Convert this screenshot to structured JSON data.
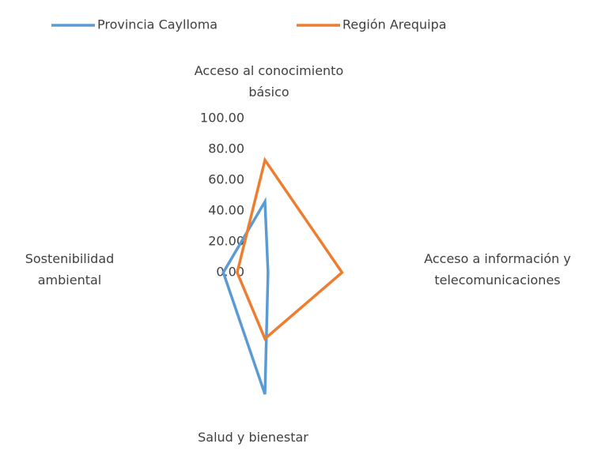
{
  "chart_data": {
    "type": "radar",
    "categories": [
      "Acceso al conocimiento básico",
      "Acceso a información y telecomunicaciones",
      "Salud y bienestar",
      "Sostenibilidad ambiental"
    ],
    "series": [
      {
        "name": "Provincia Caylloma",
        "color": "#5b9bd5",
        "values": [
          46,
          2,
          79,
          27
        ]
      },
      {
        "name": "Región Arequipa",
        "color": "#ed7d31",
        "values": [
          73,
          50,
          43,
          18
        ]
      }
    ],
    "ylim": [
      0,
      100
    ],
    "yticks": [
      {
        "value": 0,
        "label": "0.00"
      },
      {
        "value": 20,
        "label": "20.00"
      },
      {
        "value": 40,
        "label": "40.00"
      },
      {
        "value": 60,
        "label": "60.00"
      },
      {
        "value": 80,
        "label": "80.00"
      },
      {
        "value": 100,
        "label": "100.00"
      }
    ],
    "grid": false,
    "legend": "top"
  }
}
